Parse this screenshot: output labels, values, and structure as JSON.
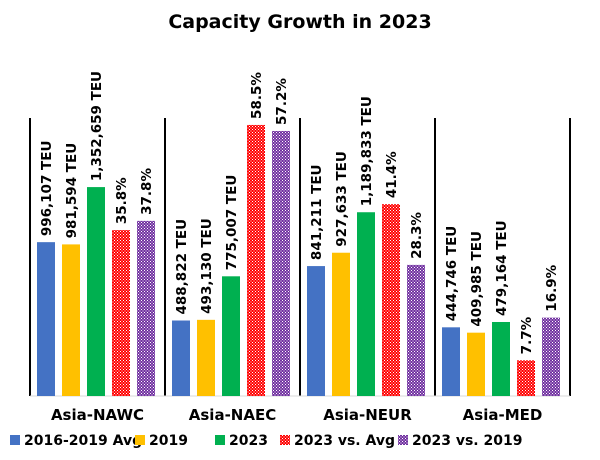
{
  "chart_data": {
    "type": "bar",
    "title": "Capacity Growth in 2023",
    "categories": [
      "Asia-NAWC",
      "Asia-NAEC",
      "Asia-NEUR",
      "Asia-MED"
    ],
    "series": [
      {
        "name": "2016-2019 Avg",
        "axis": "TEU",
        "color": "#4472C4",
        "pattern": "solid",
        "values": [
          996107,
          488822,
          841211,
          444746
        ],
        "labels": [
          "996,107 TEU",
          "488,822 TEU",
          "841,211 TEU",
          "444,746 TEU"
        ]
      },
      {
        "name": "2019",
        "axis": "TEU",
        "color": "#FFC000",
        "pattern": "solid",
        "values": [
          981594,
          493130,
          927633,
          409985
        ],
        "labels": [
          "981,594 TEU",
          "493,130 TEU",
          "927,633 TEU",
          "409,985 TEU"
        ]
      },
      {
        "name": "2023",
        "axis": "TEU",
        "color": "#00B050",
        "pattern": "solid",
        "values": [
          1352659,
          775007,
          1189833,
          479164
        ],
        "labels": [
          "1,352,659 TEU",
          "775,007 TEU",
          "1,189,833 TEU",
          "479,164 TEU"
        ]
      },
      {
        "name": "2023 vs. Avg",
        "axis": "percent",
        "color": "#FF0000",
        "pattern": "dotted",
        "values": [
          35.8,
          58.5,
          41.4,
          7.7
        ],
        "labels": [
          "35.8%",
          "58.5%",
          "41.4%",
          "7.7%"
        ]
      },
      {
        "name": "2023 vs. 2019",
        "axis": "percent",
        "color": "#7030A0",
        "pattern": "dotted",
        "values": [
          37.8,
          57.2,
          28.3,
          16.9
        ],
        "labels": [
          "37.8%",
          "57.2%",
          "28.3%",
          "16.9%"
        ]
      }
    ],
    "ylim_teu": [
      0,
      1800000
    ],
    "ylim_percent": [
      0,
      60
    ],
    "grid": false,
    "legend_position": "bottom"
  }
}
